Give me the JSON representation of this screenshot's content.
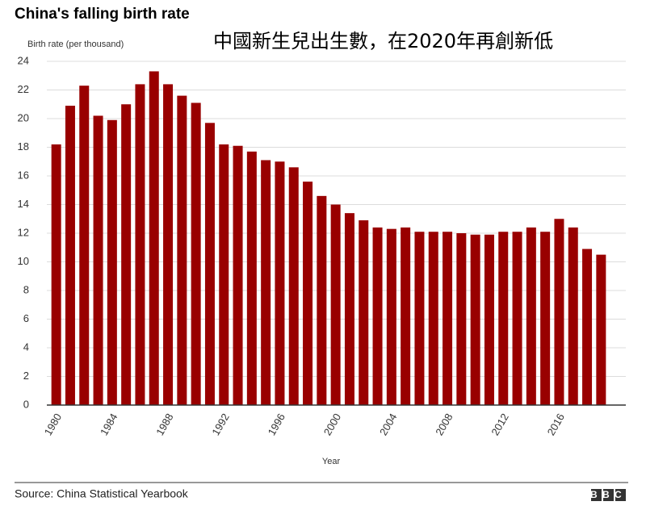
{
  "chart_data": {
    "type": "bar",
    "title": "China's falling birth rate",
    "subtitle": "中國新生兒出生數，在2020年再創新低",
    "y_label": "Birth rate (per thousand)",
    "x_label": "Year",
    "source": "Source: China Statistical Yearbook",
    "logo": "BBC",
    "categories": [
      "1980",
      null,
      null,
      null,
      "1984",
      null,
      null,
      null,
      "1988",
      null,
      null,
      null,
      "1992",
      null,
      null,
      null,
      "1996",
      null,
      null,
      null,
      "2000",
      null,
      null,
      null,
      "2004",
      null,
      null,
      null,
      "2008",
      null,
      null,
      null,
      "2012",
      null,
      null,
      null,
      "2016",
      null,
      null,
      null
    ],
    "values": [
      18.2,
      20.9,
      22.3,
      20.2,
      19.9,
      21.0,
      22.4,
      23.3,
      22.4,
      21.6,
      21.1,
      19.7,
      18.2,
      18.1,
      17.7,
      17.1,
      17.0,
      16.6,
      15.6,
      14.6,
      14.0,
      13.4,
      12.9,
      12.4,
      12.3,
      12.4,
      12.1,
      12.1,
      12.1,
      12.0,
      11.9,
      11.9,
      12.1,
      12.1,
      12.4,
      12.1,
      13.0,
      12.4,
      10.9,
      10.5
    ],
    "color": "#990000",
    "ylim": [
      0,
      24
    ],
    "yticks": [
      0,
      2,
      4,
      6,
      8,
      10,
      12,
      14,
      16,
      18,
      20,
      22,
      24
    ],
    "grid": true
  }
}
